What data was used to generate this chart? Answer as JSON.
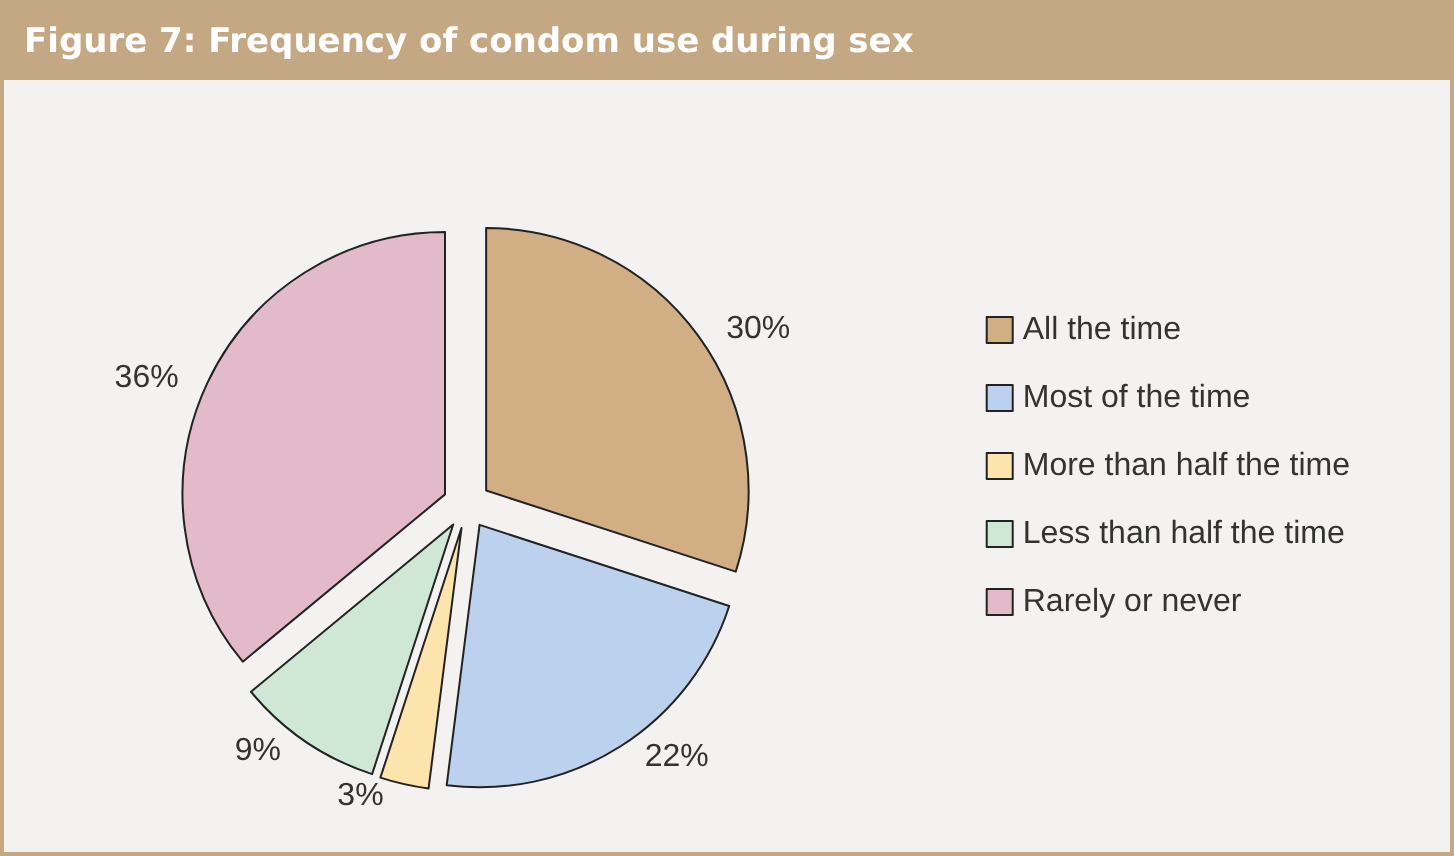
{
  "chart_data": {
    "type": "pie",
    "title": "Figure 7: Frequency of condom use during sex",
    "categories": [
      "All the time",
      "Most of the time",
      "More than half the time",
      "Less than half the time",
      "Rarely or never"
    ],
    "values": [
      30,
      22,
      3,
      9,
      36
    ],
    "value_labels": [
      "30%",
      "22%",
      "3%",
      "9%",
      "36%"
    ],
    "colors": [
      "#d2ae84",
      "#bcd1ee",
      "#fde3ac",
      "#cfe8d6",
      "#e2bac9"
    ],
    "legend": "right"
  }
}
